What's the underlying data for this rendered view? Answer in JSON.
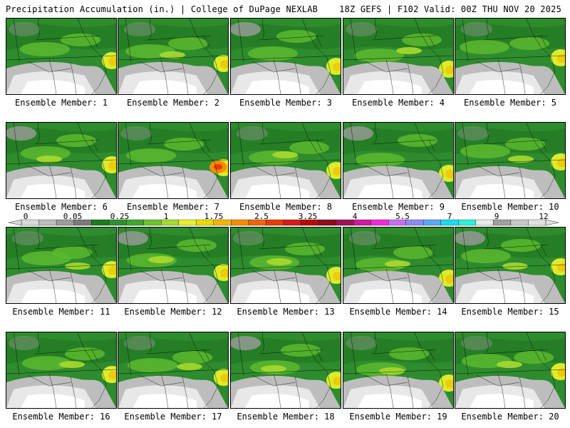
{
  "header": {
    "title_left": "Precipitation Accumulation (in.) | College of DuPage NEXLAB",
    "title_right": "18Z GEFS | F102 Valid: 00Z THU NOV 20 2025"
  },
  "colorbar": {
    "tick_labels": [
      "0",
      "0.05",
      "0.25",
      "1",
      "1.75",
      "2.5",
      "3.25",
      "4",
      "5.5",
      "7",
      "9",
      "12"
    ],
    "colors": [
      "#d9d9d9",
      "#bdbdbd",
      "#9c9c9c",
      "#7a7a7a",
      "#1f7a1f",
      "#2f8f2f",
      "#3fa82f",
      "#6cc22f",
      "#a8d92f",
      "#e6f02f",
      "#f0d800",
      "#f5b400",
      "#f58c00",
      "#f06400",
      "#e83c00",
      "#d81a1a",
      "#b80a0a",
      "#900a1a",
      "#a0105a",
      "#d01aa0",
      "#f02ad8",
      "#c86ef0",
      "#8a8af5",
      "#5aa8f5",
      "#20d8f0",
      "#30f0d8",
      "#e8e8e8",
      "#a0a0a0",
      "#c8c8c8",
      "#e0e0e0"
    ]
  },
  "panels": [
    {
      "label": "Ensemble Member: 1",
      "variant": 1
    },
    {
      "label": "Ensemble Member: 2",
      "variant": 2
    },
    {
      "label": "Ensemble Member: 3",
      "variant": 3
    },
    {
      "label": "Ensemble Member: 4",
      "variant": 4
    },
    {
      "label": "Ensemble Member: 5",
      "variant": 5
    },
    {
      "label": "Ensemble Member: 6",
      "variant": 6
    },
    {
      "label": "Ensemble Member: 7",
      "variant": 7
    },
    {
      "label": "Ensemble Member: 8",
      "variant": 8
    },
    {
      "label": "Ensemble Member: 9",
      "variant": 9
    },
    {
      "label": "Ensemble Member: 10",
      "variant": 10
    },
    {
      "label": "Ensemble Member: 11",
      "variant": 11
    },
    {
      "label": "Ensemble Member: 12",
      "variant": 12
    },
    {
      "label": "Ensemble Member: 13",
      "variant": 13
    },
    {
      "label": "Ensemble Member: 14",
      "variant": 14
    },
    {
      "label": "Ensemble Member: 15",
      "variant": 15
    },
    {
      "label": "Ensemble Member: 16",
      "variant": 16
    },
    {
      "label": "Ensemble Member: 17",
      "variant": 17
    },
    {
      "label": "Ensemble Member: 18",
      "variant": 18
    },
    {
      "label": "Ensemble Member: 19",
      "variant": 19
    },
    {
      "label": "Ensemble Member: 20",
      "variant": 20
    }
  ]
}
